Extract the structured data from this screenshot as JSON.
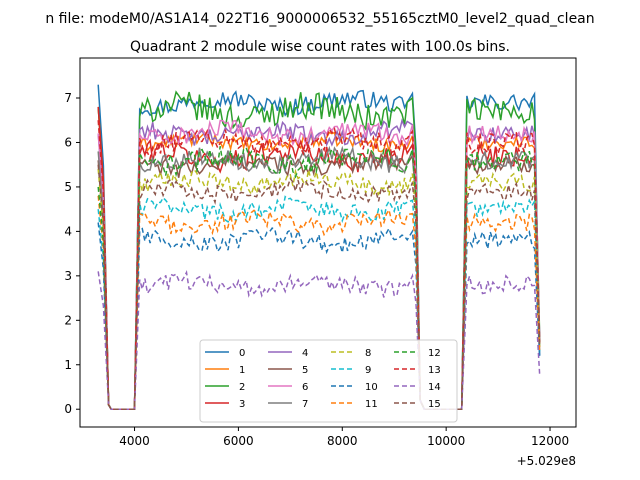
{
  "chart_data": {
    "type": "line",
    "suptitle": "n file: modeM0/AS1A14_022T16_9000006532_55165cztM0_level2_quad_clean",
    "title": "Quadrant 2 module wise count rates with 100.0s bins.",
    "xlabel": "",
    "ylabel": "",
    "x_offset_label": "+5.029e8",
    "xlim": [
      2950,
      12500
    ],
    "ylim": [
      -0.4,
      7.9
    ],
    "xticks": [
      4000,
      6000,
      8000,
      10000,
      12000
    ],
    "xtick_labels": [
      "4000",
      "6000",
      "8000",
      "10000",
      "12000"
    ],
    "yticks": [
      0,
      1,
      2,
      3,
      4,
      5,
      6,
      7
    ],
    "ytick_labels": [
      "0",
      "1",
      "2",
      "3",
      "4",
      "5",
      "6",
      "7"
    ],
    "grid": false,
    "legend_position": "lower center",
    "segments": [
      [
        3300,
        3500
      ],
      [
        3500,
        4000
      ],
      [
        4000,
        9500
      ],
      [
        9500,
        10300
      ],
      [
        10300,
        11800
      ]
    ],
    "series": [
      {
        "name": "0",
        "color": "#1f77b4",
        "dash": "solid",
        "base": 6.9,
        "amp": 0.2,
        "start": 7.3,
        "end": 1.2
      },
      {
        "name": "1",
        "color": "#ff7f0e",
        "dash": "solid",
        "base": 6.0,
        "amp": 0.15,
        "start": 6.8,
        "end": 1.4
      },
      {
        "name": "2",
        "color": "#2ca02c",
        "dash": "solid",
        "base": 6.7,
        "amp": 0.3,
        "start": 6.8,
        "end": 1.7
      },
      {
        "name": "3",
        "color": "#d62728",
        "dash": "solid",
        "base": 5.7,
        "amp": 0.25,
        "start": 6.8,
        "end": 1.5
      },
      {
        "name": "4",
        "color": "#9467bd",
        "dash": "solid",
        "base": 6.2,
        "amp": 0.2,
        "start": 6.2,
        "end": 1.6
      },
      {
        "name": "5",
        "color": "#8c564b",
        "dash": "solid",
        "base": 5.5,
        "amp": 0.2,
        "start": 5.6,
        "end": 1.5
      },
      {
        "name": "6",
        "color": "#e377c2",
        "dash": "solid",
        "base": 6.2,
        "amp": 0.2,
        "start": 6.2,
        "end": 1.6
      },
      {
        "name": "7",
        "color": "#7f7f7f",
        "dash": "solid",
        "base": 5.6,
        "amp": 0.2,
        "start": 5.8,
        "end": 1.5
      },
      {
        "name": "8",
        "color": "#bcbd22",
        "dash": "dashed",
        "base": 5.1,
        "amp": 0.2,
        "start": 5.4,
        "end": 1.4
      },
      {
        "name": "9",
        "color": "#17becf",
        "dash": "dashed",
        "base": 4.5,
        "amp": 0.2,
        "start": 4.5,
        "end": 1.3
      },
      {
        "name": "10",
        "color": "#1f77b4",
        "dash": "dashed",
        "base": 3.8,
        "amp": 0.2,
        "start": 4.2,
        "end": 1.2
      },
      {
        "name": "11",
        "color": "#ff7f0e",
        "dash": "dashed",
        "base": 4.2,
        "amp": 0.2,
        "start": 4.8,
        "end": 1.3
      },
      {
        "name": "12",
        "color": "#2ca02c",
        "dash": "dashed",
        "base": 5.6,
        "amp": 0.25,
        "start": 5.0,
        "end": 1.5
      },
      {
        "name": "13",
        "color": "#d62728",
        "dash": "dashed",
        "base": 6.0,
        "amp": 0.25,
        "start": 6.5,
        "end": 1.5
      },
      {
        "name": "14",
        "color": "#9467bd",
        "dash": "dashed",
        "base": 2.8,
        "amp": 0.2,
        "start": 3.1,
        "end": 0.8
      },
      {
        "name": "15",
        "color": "#8c564b",
        "dash": "dashed",
        "base": 4.9,
        "amp": 0.2,
        "start": 5.5,
        "end": 1.4
      }
    ]
  }
}
